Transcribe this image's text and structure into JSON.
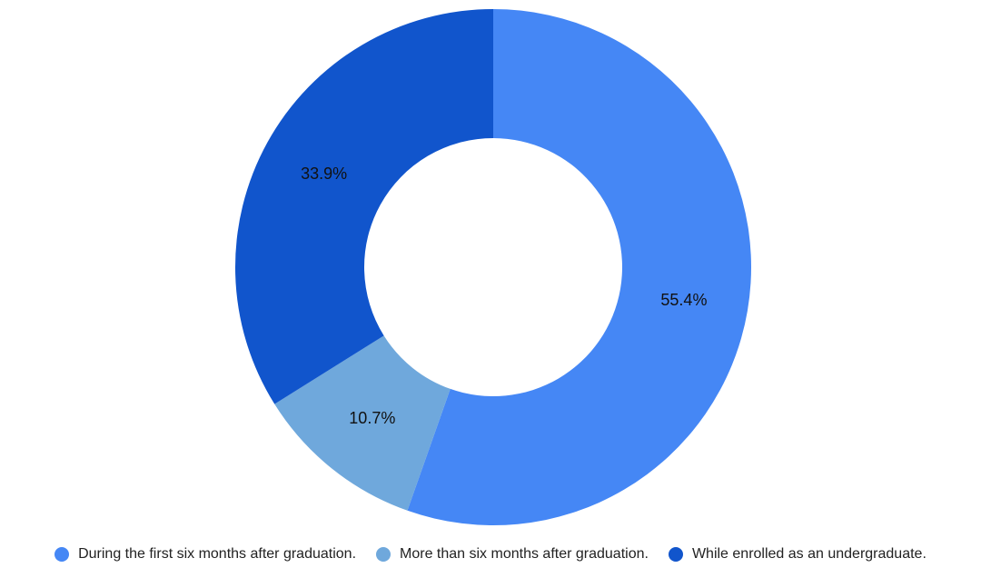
{
  "chart_data": {
    "type": "pie",
    "variant": "donut",
    "title": "",
    "slices": [
      {
        "label": "During the first six months after graduation.",
        "value": 55.4,
        "value_label": "55.4%",
        "color": "#4587f5"
      },
      {
        "label": "More than six months after graduation.",
        "value": 10.7,
        "value_label": "10.7%",
        "color": "#6fa8dc"
      },
      {
        "label": "While enrolled as an undergraduate.",
        "value": 33.9,
        "value_label": "33.9%",
        "color": "#1155cc"
      }
    ],
    "legend_position": "bottom"
  }
}
